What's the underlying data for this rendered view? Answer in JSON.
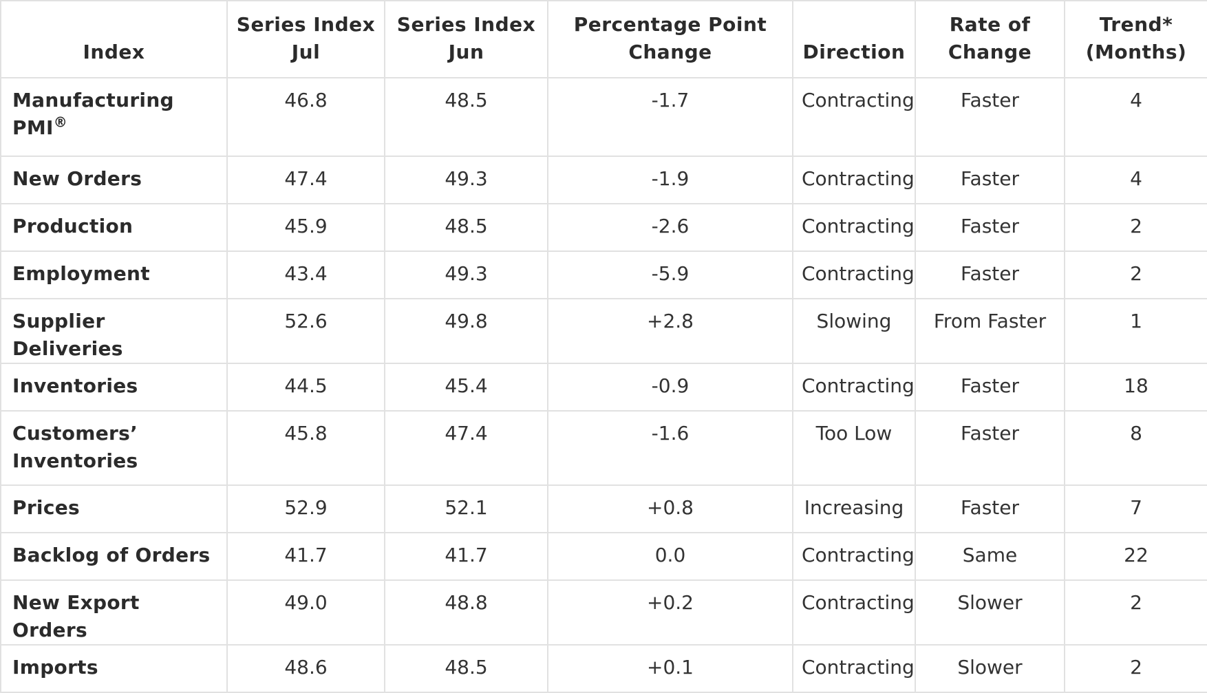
{
  "table": {
    "headers": {
      "index": "Index",
      "jul": [
        "Series Index",
        "Jul"
      ],
      "jun": [
        "Series Index",
        "Jun"
      ],
      "change": [
        "Percentage Point",
        "Change"
      ],
      "direction": "Direction",
      "rate": [
        "Rate of",
        "Change"
      ],
      "trend": [
        "Trend*",
        "(Months)"
      ]
    },
    "rows": [
      {
        "name": "Manufacturing PMI",
        "sup": "®",
        "jul": "46.8",
        "jun": "48.5",
        "change": "-1.7",
        "direction": "Contracting",
        "rate": "Faster",
        "trend": "4"
      },
      {
        "name": "New Orders",
        "jul": "47.4",
        "jun": "49.3",
        "change": "-1.9",
        "direction": "Contracting",
        "rate": "Faster",
        "trend": "4"
      },
      {
        "name": "Production",
        "jul": "45.9",
        "jun": "48.5",
        "change": "-2.6",
        "direction": "Contracting",
        "rate": "Faster",
        "trend": "2"
      },
      {
        "name": "Employment",
        "jul": "43.4",
        "jun": "49.3",
        "change": "-5.9",
        "direction": "Contracting",
        "rate": "Faster",
        "trend": "2"
      },
      {
        "name": "Supplier Deliveries",
        "jul": "52.6",
        "jun": "49.8",
        "change": "+2.8",
        "direction": "Slowing",
        "rate": "From Faster",
        "trend": "1"
      },
      {
        "name": "Inventories",
        "jul": "44.5",
        "jun": "45.4",
        "change": "-0.9",
        "direction": "Contracting",
        "rate": "Faster",
        "trend": "18"
      },
      {
        "name": "Customers’ Inventories",
        "jul": "45.8",
        "jun": "47.4",
        "change": "-1.6",
        "direction": "Too Low",
        "rate": "Faster",
        "trend": "8"
      },
      {
        "name": "Prices",
        "jul": "52.9",
        "jun": "52.1",
        "change": "+0.8",
        "direction": "Increasing",
        "rate": "Faster",
        "trend": "7"
      },
      {
        "name": "Backlog of Orders",
        "jul": "41.7",
        "jun": "41.7",
        "change": "0.0",
        "direction": "Contracting",
        "rate": "Same",
        "trend": "22"
      },
      {
        "name": "New Export Orders",
        "jul": "49.0",
        "jun": "48.8",
        "change": "+0.2",
        "direction": "Contracting",
        "rate": "Slower",
        "trend": "2"
      },
      {
        "name": "Imports",
        "jul": "48.6",
        "jun": "48.5",
        "change": "+0.1",
        "direction": "Contracting",
        "rate": "Slower",
        "trend": "2"
      }
    ]
  }
}
